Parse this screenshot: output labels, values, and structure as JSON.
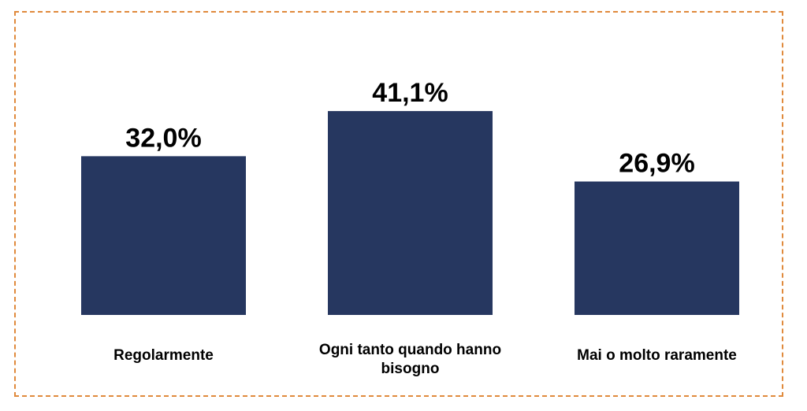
{
  "chart_data": {
    "type": "bar",
    "categories": [
      "Regolarmente",
      "Ogni tanto quando hanno bisogno",
      "Mai o molto raramente"
    ],
    "category_lines": [
      [
        "Regolarmente"
      ],
      [
        "Ogni tanto quando hanno",
        "bisogno"
      ],
      [
        "Mai o molto raramente"
      ]
    ],
    "values": [
      32.0,
      41.1,
      26.9
    ],
    "value_labels": [
      "32,0%",
      "41,1%",
      "26,9%"
    ],
    "unit": "%",
    "bar_color": "#263760",
    "border_color": "#e08a3c",
    "title": "",
    "xlabel": "",
    "ylabel": "",
    "grid": false,
    "legend": "none"
  }
}
